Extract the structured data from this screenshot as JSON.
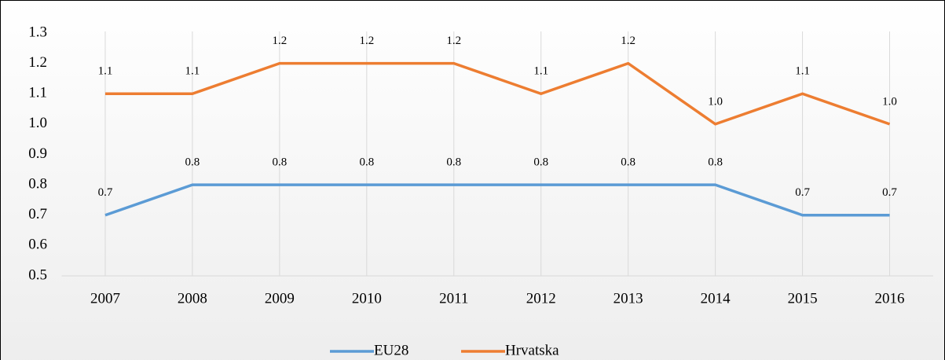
{
  "chart_data": {
    "type": "line",
    "categories": [
      "2007",
      "2008",
      "2009",
      "2010",
      "2011",
      "2012",
      "2013",
      "2014",
      "2015",
      "2016"
    ],
    "series": [
      {
        "name": "EU28",
        "color": "#5b9bd5",
        "values": [
          0.7,
          0.8,
          0.8,
          0.8,
          0.8,
          0.8,
          0.8,
          0.8,
          0.7,
          0.7
        ],
        "value_labels": [
          "0.7",
          "0.8",
          "0.8",
          "0.8",
          "0.8",
          "0.8",
          "0.8",
          "0.8",
          "0.7",
          "0.7"
        ]
      },
      {
        "name": "Hrvatska",
        "color": "#ed7d31",
        "values": [
          1.1,
          1.1,
          1.2,
          1.2,
          1.2,
          1.1,
          1.2,
          1,
          1.1,
          1
        ],
        "value_labels": [
          "1.1",
          "1.1",
          "1.2",
          "1.2",
          "1.2",
          "1.1",
          "1.2",
          "1.0",
          "1.1",
          "1.0"
        ]
      }
    ],
    "ylim": [
      0.5,
      1.3
    ],
    "yticks": [
      0.5,
      0.6,
      0.7,
      0.8,
      0.9,
      {
        "value": 1,
        "label": "1.0"
      },
      1.1,
      1.2,
      1.3
    ],
    "grid": "x",
    "legend": "bottom"
  }
}
